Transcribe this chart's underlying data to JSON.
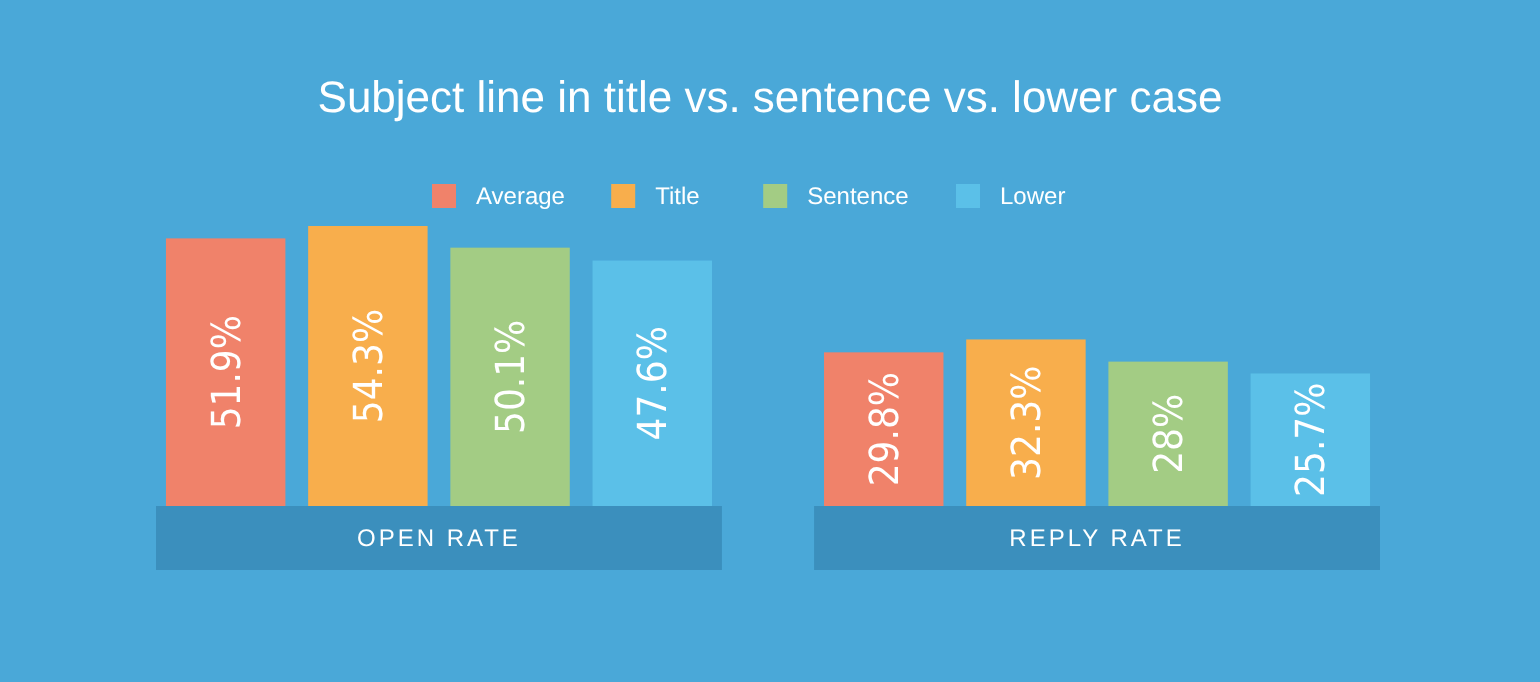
{
  "chart_data": {
    "type": "bar",
    "title": "Subject line in title vs. sentence vs. lower case",
    "categories": [
      "OPEN RATE",
      "REPLY RATE"
    ],
    "series": [
      {
        "name": "Average",
        "color": "#f0826a",
        "values": [
          51.9,
          29.8
        ],
        "value_labels": [
          "51.9%",
          "29.8%"
        ]
      },
      {
        "name": "Title",
        "color": "#f8ae4c",
        "values": [
          54.3,
          32.3
        ],
        "value_labels": [
          "54.3%",
          "32.3%"
        ]
      },
      {
        "name": "Sentence",
        "color": "#a3cc84",
        "values": [
          50.1,
          28
        ],
        "value_labels": [
          "50.1%",
          "28%"
        ]
      },
      {
        "name": "Lower",
        "color": "#5bc0e8",
        "values": [
          47.6,
          25.7
        ],
        "value_labels": [
          "47.6%",
          "25.7%"
        ]
      }
    ],
    "legend": "top"
  }
}
